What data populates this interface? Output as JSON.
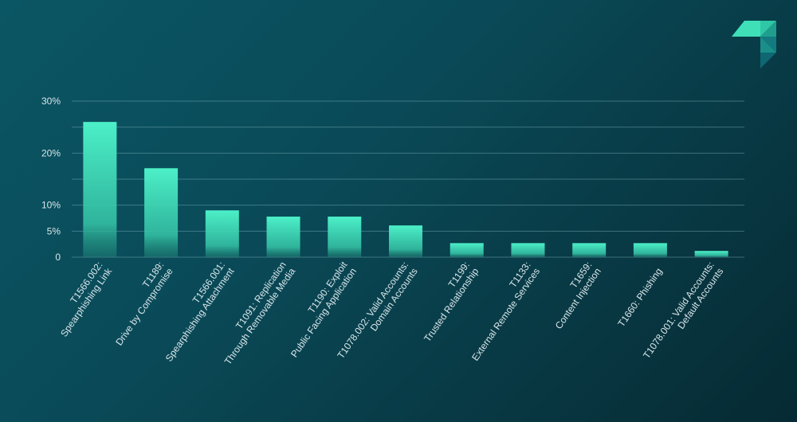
{
  "chart_data": {
    "type": "bar",
    "categories": [
      [
        "T1566.002:",
        "Spearphishing Link"
      ],
      [
        "T1189:",
        "Drive by Compromise"
      ],
      [
        "T1566.001:",
        "Spearphishing Attachment"
      ],
      [
        "T1091: Replication",
        "Through Removable Media"
      ],
      [
        "T1190: Exploit",
        "Public Facing Application"
      ],
      [
        "T1078.002: Valid Accounts:",
        "Domain Accounts"
      ],
      [
        "T1199:",
        "Trusted Relationship"
      ],
      [
        "T1133:",
        "External Remote Services"
      ],
      [
        "T1659:",
        "Content Injection"
      ],
      [
        "T1660: Phishing"
      ],
      [
        "T1078.001: Valid Accounts:",
        "Default Accounts"
      ]
    ],
    "values": [
      26.0,
      17.1,
      9.0,
      7.8,
      7.8,
      6.1,
      2.7,
      2.7,
      2.7,
      2.7,
      1.2
    ],
    "ylim": [
      0,
      30
    ],
    "yticks": [
      0,
      5,
      10,
      15,
      20,
      25,
      30
    ],
    "ytick_labels": [
      "0",
      "5%",
      "10%",
      "",
      "20%",
      "",
      "30%"
    ],
    "grid": true,
    "colors": {
      "bar_top": "#4cf0c8",
      "bar_bottom": "#2aa08a"
    }
  },
  "logo": {
    "name": "brand-logo"
  }
}
